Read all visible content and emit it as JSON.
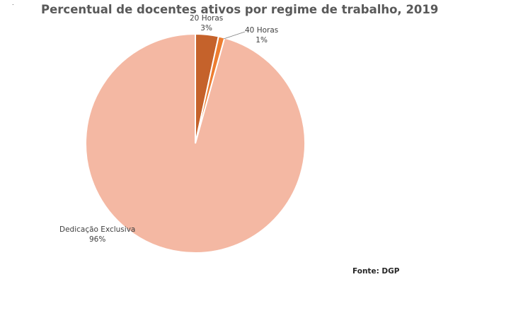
{
  "chart_data": {
    "type": "pie",
    "title": "Percentual de docentes ativos por regime de trabalho, 2019",
    "slices": [
      {
        "label": "20 Horas",
        "percent_label": "3%",
        "value": 3.4,
        "color": "#C5622B"
      },
      {
        "label": "40 Horas",
        "percent_label": "1%",
        "value": 0.9,
        "color": "#ED7D31"
      },
      {
        "label": "Dedicação Exclusiva",
        "percent_label": "96%",
        "value": 95.7,
        "color": "#F4B8A3"
      }
    ],
    "source": "Fonte: DGP"
  },
  "corner_mark": "."
}
